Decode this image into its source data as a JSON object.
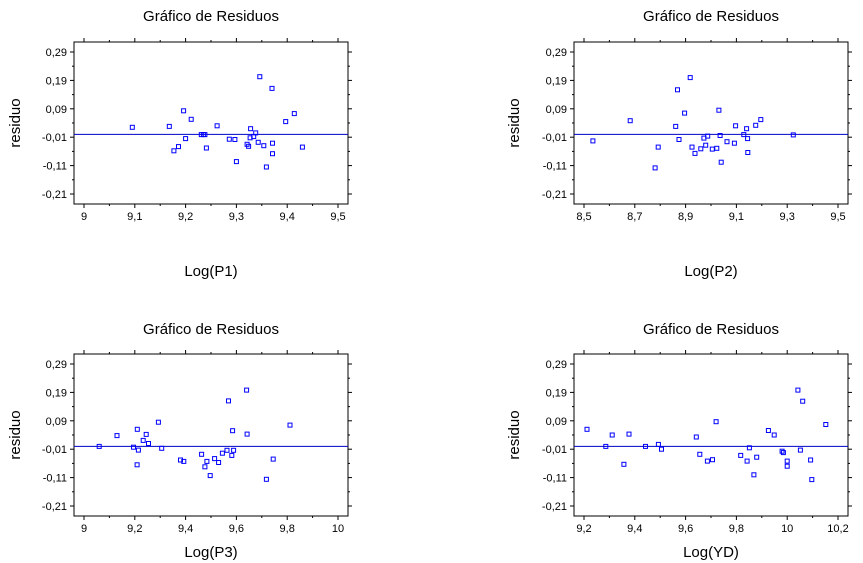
{
  "chart_data": [
    {
      "type": "scatter",
      "title": "Gráfico de Residuos",
      "xlabel": "Log(P1)",
      "ylabel": "residuo",
      "xlim": [
        9,
        9.5
      ],
      "ylim": [
        -0.21,
        0.29
      ],
      "xticks": [
        "9",
        "9,1",
        "9,2",
        "9,3",
        "9,4",
        "9,5"
      ],
      "yticks": [
        "0,29",
        "0,19",
        "0,09",
        "-0,01",
        "-0,11",
        "-0,21"
      ],
      "reference_line": 0.0,
      "grid": false,
      "points": [
        [
          9.095,
          0.025
        ],
        [
          9.168,
          0.028
        ],
        [
          9.177,
          -0.058
        ],
        [
          9.186,
          -0.043
        ],
        [
          9.196,
          0.083
        ],
        [
          9.2,
          -0.015
        ],
        [
          9.211,
          0.053
        ],
        [
          9.231,
          -0.001
        ],
        [
          9.235,
          -0.001
        ],
        [
          9.238,
          -0.001
        ],
        [
          9.241,
          -0.048
        ],
        [
          9.262,
          0.03
        ],
        [
          9.286,
          -0.017
        ],
        [
          9.297,
          -0.018
        ],
        [
          9.3,
          -0.096
        ],
        [
          9.321,
          -0.035
        ],
        [
          9.324,
          -0.042
        ],
        [
          9.327,
          -0.012
        ],
        [
          9.328,
          0.02
        ],
        [
          9.334,
          -0.008
        ],
        [
          9.338,
          0.005
        ],
        [
          9.343,
          -0.028
        ],
        [
          9.346,
          0.203
        ],
        [
          9.354,
          -0.04
        ],
        [
          9.359,
          -0.115
        ],
        [
          9.37,
          0.162
        ],
        [
          9.371,
          -0.031
        ],
        [
          9.371,
          -0.068
        ],
        [
          9.397,
          0.045
        ],
        [
          9.414,
          0.073
        ],
        [
          9.43,
          -0.045
        ]
      ]
    },
    {
      "type": "scatter",
      "title": "Gráfico de Residuos",
      "xlabel": "Log(P2)",
      "ylabel": "residuo",
      "xlim": [
        8.5,
        9.5
      ],
      "ylim": [
        -0.21,
        0.29
      ],
      "xticks": [
        "8,5",
        "8,7",
        "8,9",
        "9,1",
        "9,3",
        "9,5"
      ],
      "yticks": [
        "0,29",
        "0,19",
        "0,09",
        "-0,01",
        "-0,11",
        "-0,21"
      ],
      "reference_line": 0.0,
      "grid": false,
      "points": [
        [
          8.535,
          -0.023
        ],
        [
          8.682,
          0.048
        ],
        [
          8.78,
          -0.118
        ],
        [
          8.792,
          -0.045
        ],
        [
          8.861,
          0.028
        ],
        [
          8.868,
          0.157
        ],
        [
          8.874,
          -0.018
        ],
        [
          8.896,
          0.075
        ],
        [
          8.918,
          0.2
        ],
        [
          8.925,
          -0.045
        ],
        [
          8.937,
          -0.067
        ],
        [
          8.96,
          -0.051
        ],
        [
          8.972,
          -0.013
        ],
        [
          8.979,
          -0.038
        ],
        [
          8.987,
          -0.006
        ],
        [
          9.005,
          -0.052
        ],
        [
          9.023,
          -0.049
        ],
        [
          9.031,
          0.085
        ],
        [
          9.036,
          -0.004
        ],
        [
          9.04,
          -0.098
        ],
        [
          9.063,
          -0.026
        ],
        [
          9.092,
          -0.031
        ],
        [
          9.097,
          0.03
        ],
        [
          9.129,
          -0.001
        ],
        [
          9.14,
          0.02
        ],
        [
          9.144,
          -0.015
        ],
        [
          9.145,
          -0.064
        ],
        [
          9.176,
          0.032
        ],
        [
          9.196,
          0.052
        ],
        [
          9.324,
          -0.002
        ]
      ]
    },
    {
      "type": "scatter",
      "title": "Gráfico de Residuos",
      "xlabel": "Log(P3)",
      "ylabel": "residuo",
      "xlim": [
        9,
        10
      ],
      "ylim": [
        -0.21,
        0.29
      ],
      "xticks": [
        "9",
        "9,2",
        "9,4",
        "9,6",
        "9,8",
        "10"
      ],
      "yticks": [
        "0,29",
        "0,19",
        "0,09",
        "-0,01",
        "-0,11",
        "-0,21"
      ],
      "reference_line": 0.0,
      "grid": false,
      "points": [
        [
          9.06,
          0.0
        ],
        [
          9.13,
          0.038
        ],
        [
          9.195,
          -0.003
        ],
        [
          9.209,
          -0.065
        ],
        [
          9.21,
          0.06
        ],
        [
          9.214,
          -0.013
        ],
        [
          9.233,
          0.021
        ],
        [
          9.245,
          0.042
        ],
        [
          9.254,
          0.01
        ],
        [
          9.293,
          0.085
        ],
        [
          9.306,
          -0.007
        ],
        [
          9.38,
          -0.048
        ],
        [
          9.393,
          -0.053
        ],
        [
          9.463,
          -0.028
        ],
        [
          9.476,
          -0.072
        ],
        [
          9.484,
          -0.053
        ],
        [
          9.497,
          -0.103
        ],
        [
          9.514,
          -0.043
        ],
        [
          9.53,
          -0.057
        ],
        [
          9.545,
          -0.024
        ],
        [
          9.563,
          -0.014
        ],
        [
          9.569,
          0.16
        ],
        [
          9.582,
          -0.032
        ],
        [
          9.585,
          0.055
        ],
        [
          9.589,
          -0.014
        ],
        [
          9.64,
          0.198
        ],
        [
          9.642,
          0.043
        ],
        [
          9.718,
          -0.116
        ],
        [
          9.745,
          -0.045
        ],
        [
          9.811,
          0.075
        ]
      ]
    },
    {
      "type": "scatter",
      "title": "Gráfico de Residuos",
      "xlabel": "Log(YD)",
      "ylabel": "residuo",
      "xlim": [
        9.2,
        10.2
      ],
      "ylim": [
        -0.21,
        0.29
      ],
      "xticks": [
        "9,2",
        "9,4",
        "9,6",
        "9,8",
        "10",
        "10,2"
      ],
      "yticks": [
        "0,29",
        "0,19",
        "0,09",
        "-0,01",
        "-0,11",
        "-0,21"
      ],
      "reference_line": 0.0,
      "grid": false,
      "points": [
        [
          9.212,
          0.06
        ],
        [
          9.286,
          0.0
        ],
        [
          9.311,
          0.04
        ],
        [
          9.357,
          -0.063
        ],
        [
          9.377,
          0.043
        ],
        [
          9.442,
          0.0
        ],
        [
          9.493,
          0.007
        ],
        [
          9.505,
          -0.01
        ],
        [
          9.642,
          0.033
        ],
        [
          9.656,
          -0.028
        ],
        [
          9.686,
          -0.052
        ],
        [
          9.706,
          -0.047
        ],
        [
          9.72,
          0.087
        ],
        [
          9.817,
          -0.032
        ],
        [
          9.842,
          -0.052
        ],
        [
          9.851,
          -0.005
        ],
        [
          9.869,
          -0.1
        ],
        [
          9.88,
          -0.038
        ],
        [
          9.926,
          0.056
        ],
        [
          9.949,
          0.04
        ],
        [
          9.98,
          -0.017
        ],
        [
          9.985,
          -0.022
        ],
        [
          10.0,
          -0.052
        ],
        [
          10.0,
          -0.07
        ],
        [
          10.042,
          0.198
        ],
        [
          10.052,
          -0.013
        ],
        [
          10.061,
          0.159
        ],
        [
          10.092,
          -0.048
        ],
        [
          10.097,
          -0.117
        ],
        [
          10.152,
          0.077
        ]
      ]
    }
  ],
  "colors": {
    "axis": "#000000",
    "marker": "#0000ff",
    "reference_line": "#0000c8"
  }
}
